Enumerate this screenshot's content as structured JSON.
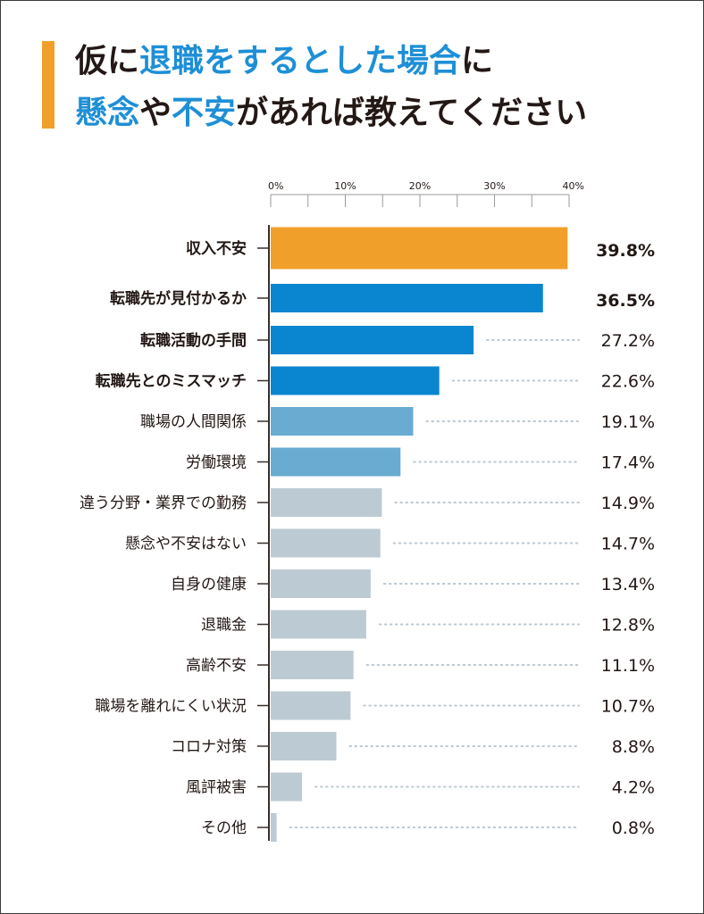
{
  "header": {
    "title_line1": [
      {
        "text": "仮に",
        "highlight": false
      },
      {
        "text": "退職をするとした場合",
        "highlight": true
      },
      {
        "text": "に",
        "highlight": false
      }
    ],
    "title_line2": [
      {
        "text": "懸念",
        "highlight": true
      },
      {
        "text": "や",
        "highlight": false
      },
      {
        "text": "不安",
        "highlight": true
      },
      {
        "text": "があれば教えてください",
        "highlight": false
      }
    ],
    "accent_color": "#f0a02a",
    "highlight_color": "#1e8fd6"
  },
  "chart_data": {
    "type": "bar",
    "orientation": "horizontal",
    "title": "仮に退職をするとした場合に懸念や不安があれば教えてください",
    "xlabel": "",
    "ylabel": "",
    "xlim": [
      0,
      40
    ],
    "x_ticks": [
      "0%",
      "10%",
      "20%",
      "30%",
      "40%"
    ],
    "x_tick_values": [
      0,
      10,
      20,
      30,
      40
    ],
    "minor_tick_step": 5,
    "grid": false,
    "unit": "%",
    "categories": [
      "収入不安",
      "転職先が見付かるか",
      "転職活動の手間",
      "転職先とのミスマッチ",
      "職場の人間関係",
      "労働環境",
      "違う分野・業界での勤務",
      "懸念や不安はない",
      "自身の健康",
      "退職金",
      "高齢不安",
      "職場を離れにくい状況",
      "コロナ対策",
      "風評被害",
      "その他"
    ],
    "values": [
      39.8,
      36.5,
      27.2,
      22.6,
      19.1,
      17.4,
      14.9,
      14.7,
      13.4,
      12.8,
      11.1,
      10.7,
      8.8,
      4.2,
      0.8
    ],
    "value_labels": [
      "39.8%",
      "36.5%",
      "27.2%",
      "22.6%",
      "19.1%",
      "17.4%",
      "14.9%",
      "14.7%",
      "13.4%",
      "12.8%",
      "11.1%",
      "10.7%",
      "8.8%",
      "4.2%",
      "0.8%"
    ],
    "tiers": [
      "top",
      "second",
      "second",
      "second",
      "third",
      "third",
      "other",
      "other",
      "other",
      "other",
      "other",
      "other",
      "other",
      "other",
      "other"
    ],
    "colors": {
      "top": "#f0a02a",
      "second": "#0a86d0",
      "third": "#6aabd2",
      "other": "#bccad3",
      "label_top": "#f0a02a",
      "label_second": "#1e8fd6",
      "label_default": "#231815",
      "leader_dots": "#b9c9d4"
    }
  }
}
